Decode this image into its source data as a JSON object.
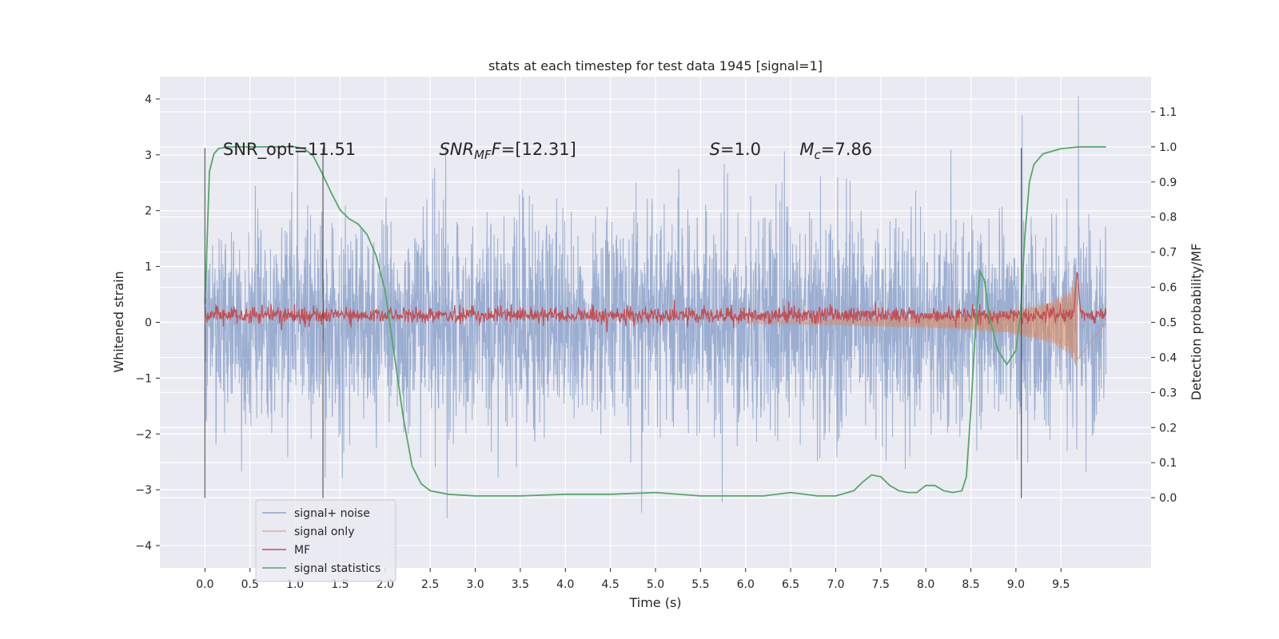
{
  "chart_data": {
    "type": "line",
    "title": "stats at each timestep for test data 1945 [signal=1]",
    "xlabel": "Time (s)",
    "ylabel": "Whitened strain",
    "ylabel_right": "Detection probability/MF",
    "xlim": [
      -0.5,
      10.5
    ],
    "ylim": [
      -4.4,
      4.4
    ],
    "ylim_right": [
      -0.2,
      1.2
    ],
    "xticks": [
      0.0,
      0.5,
      1.0,
      1.5,
      2.0,
      2.5,
      3.0,
      3.5,
      4.0,
      4.5,
      5.0,
      5.5,
      6.0,
      6.5,
      7.0,
      7.5,
      8.0,
      8.5,
      9.0,
      9.5
    ],
    "xtick_labels": [
      "0.0",
      "0.5",
      "1.0",
      "1.5",
      "2.0",
      "2.5",
      "3.0",
      "3.5",
      "4.0",
      "4.5",
      "5.0",
      "5.5",
      "6.0",
      "6.5",
      "7.0",
      "7.5",
      "8.0",
      "8.5",
      "9.0",
      "9.5"
    ],
    "yticks": [
      -4,
      -3,
      -2,
      -1,
      0,
      1,
      2,
      3,
      4
    ],
    "ytick_labels": [
      "−4",
      "−3",
      "−2",
      "−1",
      "0",
      "1",
      "2",
      "3",
      "4"
    ],
    "yticks_right": [
      0.0,
      0.1,
      0.2,
      0.3,
      0.4,
      0.5,
      0.6,
      0.7,
      0.8,
      0.9,
      1.0,
      1.1
    ],
    "ytick_labels_right": [
      "0.0",
      "0.1",
      "0.2",
      "0.3",
      "0.4",
      "0.5",
      "0.6",
      "0.7",
      "0.8",
      "0.9",
      "1.0",
      "1.1"
    ],
    "grid": true,
    "legend_position": "lower-left",
    "annotations": [
      {
        "text": "SNR_opt=11.51",
        "x": 0.2
      },
      {
        "text": "SNR",
        "sub": "MF",
        "suffix": "F=[12.31]",
        "x": 2.6
      },
      {
        "text": "S",
        "suffix": "=1.0",
        "x": 5.6
      },
      {
        "text": "M",
        "sub": "c",
        "suffix": "=7.86",
        "x": 6.6
      }
    ],
    "annotation_y": 3.1,
    "vlines": [
      0.0,
      1.31,
      9.06
    ],
    "vline_range": [
      -3.15,
      3.12
    ],
    "series": [
      {
        "name": "signal+ noise",
        "axis": "left",
        "color": "#4c72b0",
        "noise_std": 0.92,
        "x_range": [
          0.0,
          10.0
        ]
      },
      {
        "name": "signal only",
        "axis": "left",
        "color": "#dd8452",
        "envelope": {
          "x": [
            6.0,
            7.0,
            8.0,
            8.5,
            9.0,
            9.4,
            9.6,
            9.68
          ],
          "amp": [
            0.02,
            0.05,
            0.1,
            0.14,
            0.22,
            0.38,
            0.58,
            0.85
          ]
        }
      },
      {
        "name": "MF",
        "axis": "right",
        "color": "#c44e52",
        "base": 0.52,
        "peak": {
          "x": 9.68,
          "y": 0.65
        }
      },
      {
        "name": "signal statistics",
        "axis": "right",
        "color": "#55a868",
        "x": [
          0.0,
          0.05,
          0.1,
          0.15,
          0.25,
          0.5,
          0.8,
          1.0,
          1.1,
          1.2,
          1.3,
          1.4,
          1.5,
          1.6,
          1.7,
          1.8,
          1.9,
          2.0,
          2.1,
          2.2,
          2.3,
          2.4,
          2.5,
          2.7,
          3.0,
          3.5,
          4.0,
          4.5,
          5.0,
          5.5,
          6.0,
          6.2,
          6.5,
          6.8,
          7.0,
          7.2,
          7.3,
          7.4,
          7.5,
          7.6,
          7.7,
          7.8,
          7.9,
          8.0,
          8.1,
          8.2,
          8.3,
          8.4,
          8.45,
          8.5,
          8.55,
          8.6,
          8.65,
          8.7,
          8.8,
          8.9,
          9.0,
          9.05,
          9.1,
          9.15,
          9.2,
          9.3,
          9.5,
          9.7,
          10.0
        ],
        "y": [
          0.55,
          0.93,
          0.98,
          0.995,
          1.0,
          1.0,
          1.0,
          1.0,
          0.995,
          0.975,
          0.925,
          0.87,
          0.82,
          0.795,
          0.78,
          0.75,
          0.69,
          0.59,
          0.41,
          0.23,
          0.09,
          0.04,
          0.02,
          0.01,
          0.005,
          0.005,
          0.01,
          0.01,
          0.015,
          0.005,
          0.005,
          0.005,
          0.015,
          0.005,
          0.005,
          0.02,
          0.045,
          0.065,
          0.06,
          0.035,
          0.02,
          0.015,
          0.015,
          0.035,
          0.035,
          0.02,
          0.015,
          0.02,
          0.06,
          0.25,
          0.48,
          0.645,
          0.62,
          0.52,
          0.42,
          0.38,
          0.42,
          0.52,
          0.75,
          0.9,
          0.95,
          0.98,
          0.995,
          1.0,
          1.0
        ]
      }
    ]
  }
}
